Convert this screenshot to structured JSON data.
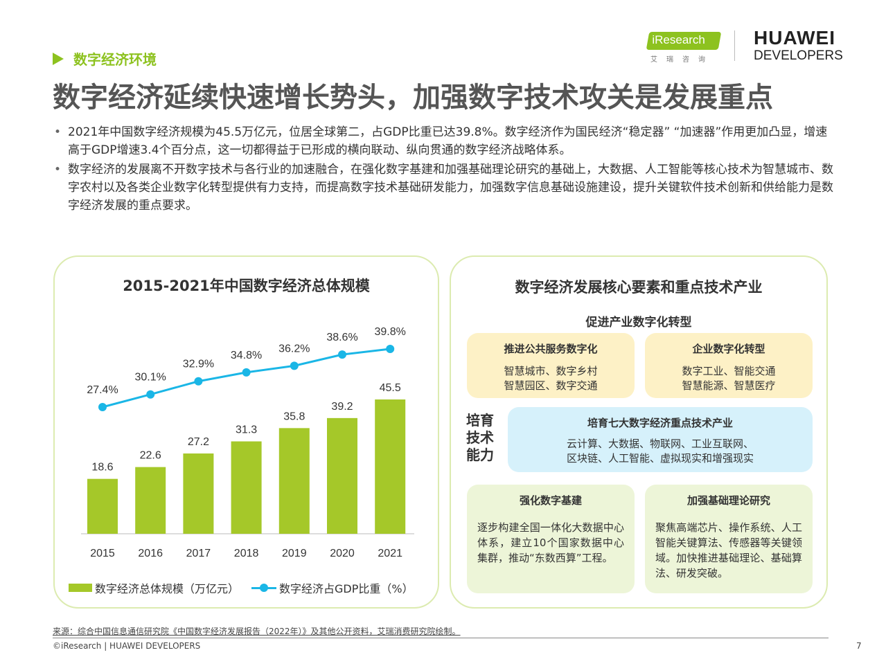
{
  "header": {
    "section_label": "数字经济环境",
    "logo_iresearch": "iResearch",
    "logo_iresearch_sub": "艾瑞咨询",
    "logo_huawei_line1": "HUAWEI",
    "logo_huawei_line2": "DEVELOPERS",
    "accent_color": "#8dc21f"
  },
  "title": "数字经济延续快速增长势头，加强数字技术攻关是发展重点",
  "bullets": [
    "2021年中国数字经济规模为45.5万亿元，位居全球第二，占GDP比重已达39.8%。数字经济作为国民经济“稳定器” “加速器”作用更加凸显，增速高于GDP增速3.4个百分点，这一切都得益于已形成的横向联动、纵向贯通的数字经济战略体系。",
    "数字经济的发展离不开数字技术与各行业的加速融合，在强化数字基建和加强基础理论研究的基础上，大数据、人工智能等核心技术为智慧城市、数字农村以及各类企业数字化转型提供有力支持，而提高数字技术基础研发能力，加强数字信息基础设施建设，提升关键软件技术创新和供给能力是数字经济发展的重点要求。"
  ],
  "chart_data": {
    "type": "bar",
    "title": "2015-2021年中国数字经济总体规模",
    "categories": [
      "2015",
      "2016",
      "2017",
      "2018",
      "2019",
      "2020",
      "2021"
    ],
    "series": [
      {
        "name": "数字经济总体规模（万亿元）",
        "type": "bar",
        "values": [
          18.6,
          22.6,
          27.2,
          31.3,
          35.8,
          39.2,
          45.5
        ],
        "labels": [
          "18.6",
          "22.6",
          "27.2",
          "31.3",
          "35.8",
          "39.2",
          "45.5"
        ],
        "color": "#a5c829"
      },
      {
        "name": "数字经济占GDP比重（%）",
        "type": "line",
        "values": [
          27.4,
          30.1,
          32.9,
          34.8,
          36.2,
          38.6,
          39.8
        ],
        "labels": [
          "27.4%",
          "30.1%",
          "32.9%",
          "34.8%",
          "36.2%",
          "38.6%",
          "39.8%"
        ],
        "color": "#1ab6e6"
      }
    ],
    "legend_position": "bottom",
    "grid": false
  },
  "right_panel": {
    "title": "数字经济发展核心要素和重点技术产业",
    "subtitle": "促进产业数字化转型",
    "card_public": {
      "title": "推进公共服务数字化",
      "lines": [
        "智慧城市、数字乡村",
        "智慧园区、数字交通"
      ]
    },
    "card_enterprise": {
      "title": "企业数字化转型",
      "lines": [
        "数字工业、智能交通",
        "智慧能源、智慧医疗"
      ]
    },
    "side_label": [
      "培育",
      "技术",
      "能力"
    ],
    "card_industries": {
      "title": "培育七大数字经济重点技术产业",
      "lines": [
        "云计算、大数据、物联网、工业互联网、",
        "区块链、人工智能、虚拟现实和增强现实"
      ]
    },
    "card_infra": {
      "title": "强化数字基建",
      "body": "逐步构建全国一体化大数据中心体系，建立10个国家数据中心集群，推动“东数西算”工程。"
    },
    "card_theory": {
      "title": "加强基础理论研究",
      "body": "聚焦高端芯片、操作系统、人工智能关键算法、传感器等关键领域。加快推进基础理论、基础算法、研发突破。"
    }
  },
  "footer": {
    "source": "来源：综合中国信息通信研究院《中国数字经济发展报告（2022年）》及其他公开资料，艾瑞消费研究院绘制。",
    "copyright": "©iResearch | HUAWEI DEVELOPERS",
    "page_number": "7"
  }
}
